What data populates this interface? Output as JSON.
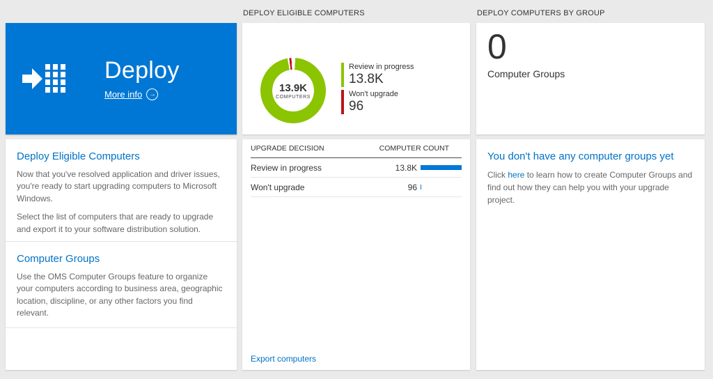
{
  "headers": {
    "middle": "DEPLOY ELIGIBLE COMPUTERS",
    "right": "DEPLOY COMPUTERS BY GROUP"
  },
  "deploy_tile": {
    "title": "Deploy",
    "more_info_label": "More info",
    "more_info_arrow": "→"
  },
  "left_panel": {
    "sections": [
      {
        "heading": "Deploy Eligible Computers",
        "paragraphs": [
          "Now that you've resolved application and driver issues, you're ready to start upgrading computers to Microsoft Windows.",
          "Select the list of computers that are ready to upgrade and export it to your software distribution solution."
        ]
      },
      {
        "heading": "Computer Groups",
        "paragraphs": [
          "Use the OMS Computer Groups feature to organize your computers according to business area, geographic location, discipline, or any other factors you find relevant."
        ]
      }
    ]
  },
  "chart_data": {
    "type": "pie",
    "variant": "donut",
    "title": "DEPLOY ELIGIBLE COMPUTERS",
    "center_value": "13.9K",
    "center_label": "COMPUTERS",
    "slices": [
      {
        "label": "Review in progress",
        "display_value": "13.8K",
        "value": 13800,
        "color": "#8bc400"
      },
      {
        "label": "Won't upgrade",
        "display_value": "96",
        "value": 96,
        "color": "#ba141a"
      }
    ],
    "legend_position": "right"
  },
  "table": {
    "headers": [
      "UPGRADE DECISION",
      "COMPUTER COUNT"
    ],
    "rows": [
      {
        "label": "Review in progress",
        "value": "13.8K",
        "bar_pct": 100
      },
      {
        "label": "Won't upgrade",
        "value": "96",
        "bar_pct": 2
      }
    ],
    "export_link": "Export computers"
  },
  "groups_tile": {
    "count": "0",
    "label": "Computer Groups"
  },
  "groups_panel": {
    "heading": "You don't have any computer groups yet",
    "text_before": "Click ",
    "link_text": "here",
    "text_after": " to learn how to create Computer Groups and find out how they can help you with your upgrade project."
  },
  "colors": {
    "accent_blue": "#0072c6",
    "tile_blue": "#0077d4",
    "bar_blue": "#0078d7",
    "green": "#8bc400",
    "red": "#ba141a",
    "page_bg": "#eaeaea"
  }
}
